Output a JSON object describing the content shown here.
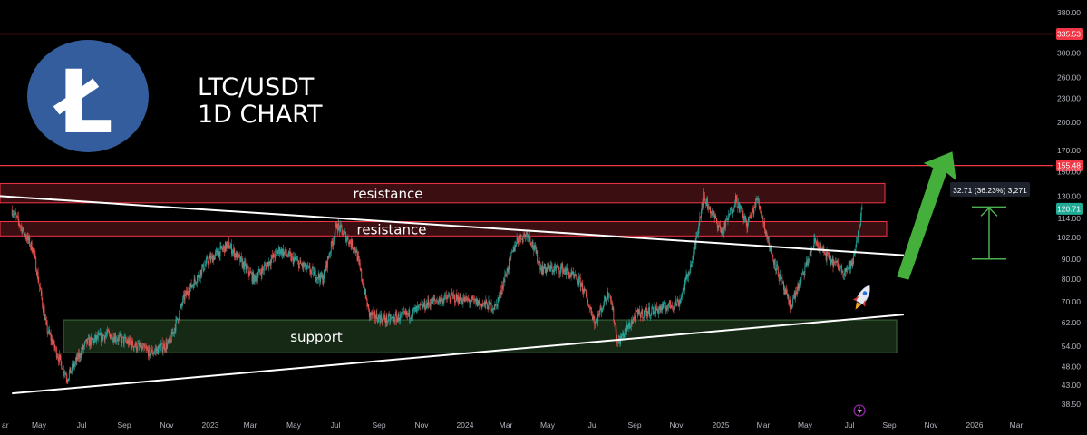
{
  "header": {
    "pair": "LTC/USDT",
    "timeframe": "1D CHART"
  },
  "logo": {
    "icon": "litecoin-logo-icon",
    "color": "#345d9d",
    "glyph": "Ł"
  },
  "colors": {
    "background": "#000000",
    "bull": "#26a69a",
    "bear": "#ef5350",
    "resistance_line": "#f23645",
    "zone_resistance": "#6b1a1f",
    "zone_support": "#1e3a1e",
    "trendline": "#ffffff",
    "arrow": "#44b03b",
    "current_price_tag": "#22ab94",
    "measure": "#4caf50"
  },
  "chart_data": {
    "type": "candlestick",
    "scale": "log",
    "ylim": [
      38.5,
      380
    ],
    "y_ticks": [
      "380.00",
      "335.53",
      "300.00",
      "260.00",
      "230.00",
      "200.00",
      "170.00",
      "155.48",
      "150.00",
      "130.00",
      "120.71",
      "114.00",
      "102.00",
      "90.00",
      "80.00",
      "70.00",
      "62.00",
      "54.00",
      "48.00",
      "43.00",
      "38.50"
    ],
    "x_ticks": [
      "May",
      "Jul",
      "Sep",
      "Nov",
      "2023",
      "Mar",
      "May",
      "Jul",
      "Sep",
      "Nov",
      "2024",
      "Mar",
      "May",
      "Jul",
      "Sep",
      "Nov",
      "2025",
      "Mar",
      "May",
      "Jul",
      "Sep",
      "Nov",
      "2026",
      "Mar"
    ],
    "x_tick_left_partial": "ar",
    "series": [
      {
        "kind": "price_path",
        "points": [
          [
            "2022-04-01",
            120
          ],
          [
            "2022-05-01",
            95
          ],
          [
            "2022-05-20",
            60
          ],
          [
            "2022-06-18",
            45
          ],
          [
            "2022-07-15",
            55
          ],
          [
            "2022-08-15",
            58
          ],
          [
            "2022-09-15",
            55
          ],
          [
            "2022-10-15",
            52
          ],
          [
            "2022-11-10",
            55
          ],
          [
            "2022-12-01",
            72
          ],
          [
            "2023-01-01",
            88
          ],
          [
            "2023-02-01",
            98
          ],
          [
            "2023-03-10",
            80
          ],
          [
            "2023-04-15",
            95
          ],
          [
            "2023-05-15",
            87
          ],
          [
            "2023-06-15",
            80
          ],
          [
            "2023-07-05",
            110
          ],
          [
            "2023-08-01",
            95
          ],
          [
            "2023-08-20",
            65
          ],
          [
            "2023-09-15",
            63
          ],
          [
            "2023-10-15",
            65
          ],
          [
            "2023-11-15",
            70
          ],
          [
            "2023-12-15",
            72
          ],
          [
            "2024-01-15",
            70
          ],
          [
            "2024-02-15",
            68
          ],
          [
            "2024-03-15",
            100
          ],
          [
            "2024-04-01",
            105
          ],
          [
            "2024-04-20",
            85
          ],
          [
            "2024-05-20",
            85
          ],
          [
            "2024-06-15",
            78
          ],
          [
            "2024-07-05",
            62
          ],
          [
            "2024-07-25",
            75
          ],
          [
            "2024-08-06",
            55
          ],
          [
            "2024-09-01",
            65
          ],
          [
            "2024-10-01",
            67
          ],
          [
            "2024-11-01",
            70
          ],
          [
            "2024-11-20",
            90
          ],
          [
            "2024-12-05",
            130
          ],
          [
            "2025-01-01",
            105
          ],
          [
            "2025-01-20",
            128
          ],
          [
            "2025-02-05",
            110
          ],
          [
            "2025-02-20",
            128
          ],
          [
            "2025-03-10",
            95
          ],
          [
            "2025-04-07",
            68
          ],
          [
            "2025-04-25",
            82
          ],
          [
            "2025-05-12",
            100
          ],
          [
            "2025-06-01",
            90
          ],
          [
            "2025-06-22",
            84
          ],
          [
            "2025-07-05",
            88
          ],
          [
            "2025-07-18",
            120.71
          ]
        ]
      }
    ],
    "horizontal_levels": [
      335.53,
      155.48
    ],
    "zones": [
      {
        "label": "resistance",
        "from": 125,
        "to": 140
      },
      {
        "label": "resistance",
        "from": 103,
        "to": 112
      },
      {
        "label": "support",
        "from": 52,
        "to": 63
      }
    ],
    "trendlines": [
      {
        "name": "descending",
        "from": [
          "2022-03-15",
          130
        ],
        "to": [
          "2025-09-15",
          92
        ]
      },
      {
        "name": "ascending",
        "from": [
          "2022-04-01",
          41
        ],
        "to": [
          "2025-09-15",
          65
        ]
      }
    ],
    "current_price": "120.71",
    "measure_label": "32.71 (36.23%) 3,271",
    "measure_range": [
      90,
      122
    ],
    "rocket_icon": "rocket-icon",
    "lightning_icon": "lightning-icon"
  }
}
